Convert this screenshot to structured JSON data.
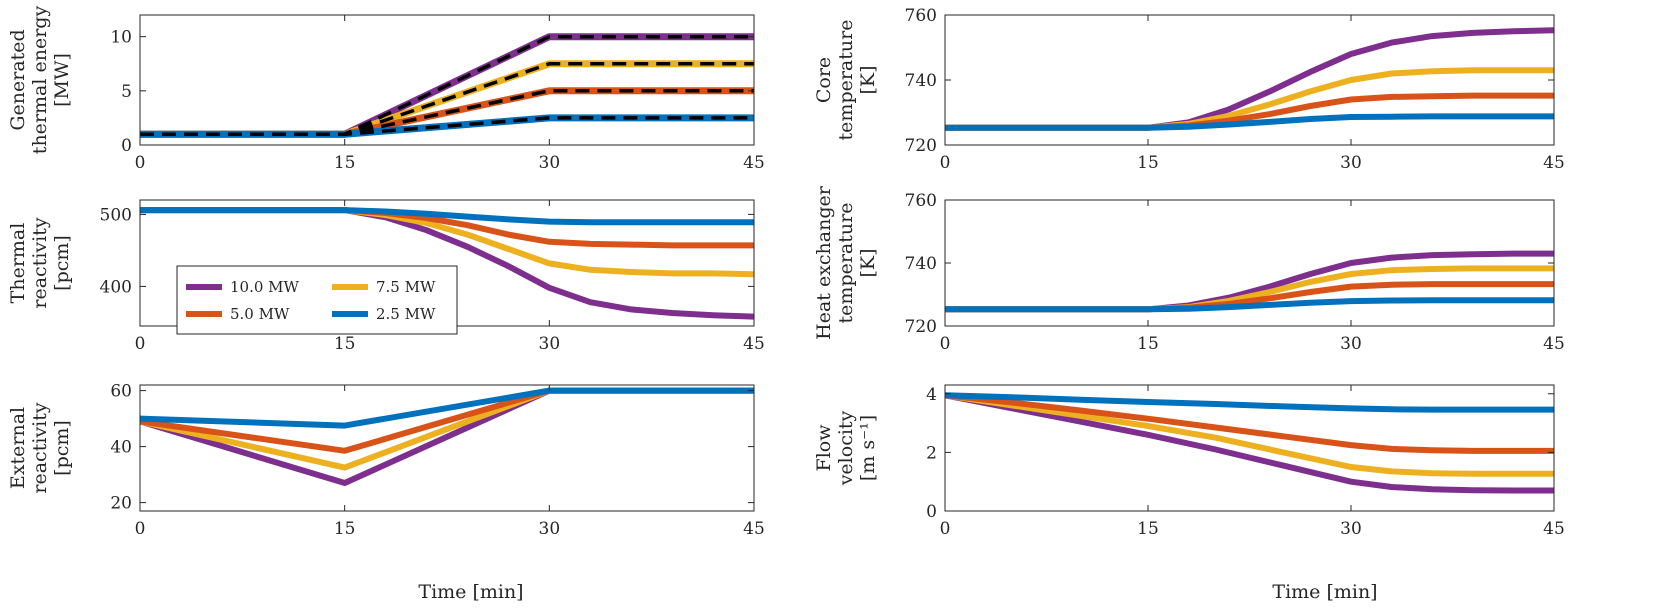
{
  "figure": {
    "xlabel_shared": "Time [min]"
  },
  "legend": {
    "entries": [
      {
        "label": "10.0 MW",
        "color": "#7E2F8E"
      },
      {
        "label": "7.5 MW",
        "color": "#EDB120"
      },
      {
        "label": "5.0 MW",
        "color": "#D95319"
      },
      {
        "label": "2.5 MW",
        "color": "#0072BD"
      }
    ]
  },
  "chart_data": [
    {
      "id": "gen",
      "type": "line",
      "ylabel": [
        "Generated",
        "thermal energy",
        "[MW]"
      ],
      "xlim": [
        0,
        45
      ],
      "ylim": [
        0,
        12
      ],
      "xticks": [
        0,
        15,
        30,
        45
      ],
      "yticks": [
        0,
        5,
        10
      ],
      "series": [
        {
          "name": "10.0 MW",
          "color": "#7E2F8E",
          "x": [
            0,
            15,
            30,
            45
          ],
          "y": [
            1,
            1,
            10,
            10
          ]
        },
        {
          "name": "7.5 MW",
          "color": "#EDB120",
          "x": [
            0,
            15,
            30,
            45
          ],
          "y": [
            1,
            1,
            7.5,
            7.5
          ]
        },
        {
          "name": "5.0 MW",
          "color": "#D95319",
          "x": [
            0,
            15,
            30,
            45
          ],
          "y": [
            1,
            1,
            5,
            5
          ]
        },
        {
          "name": "2.5 MW",
          "color": "#0072BD",
          "x": [
            0,
            15,
            30,
            45
          ],
          "y": [
            1,
            1,
            2.5,
            2.5
          ]
        }
      ],
      "reference": [
        {
          "x": [
            0,
            15,
            30,
            45
          ],
          "y": [
            1,
            1,
            10,
            10
          ]
        },
        {
          "x": [
            0,
            15,
            30,
            45
          ],
          "y": [
            1,
            1,
            7.5,
            7.5
          ]
        },
        {
          "x": [
            0,
            15,
            30,
            45
          ],
          "y": [
            1,
            1,
            5,
            5
          ]
        },
        {
          "x": [
            0,
            15,
            30,
            45
          ],
          "y": [
            1,
            1,
            2.5,
            2.5
          ]
        }
      ]
    },
    {
      "id": "thermal",
      "type": "line",
      "ylabel": [
        "Thermal",
        "reactivity",
        "[pcm]"
      ],
      "xlim": [
        0,
        45
      ],
      "ylim": [
        345,
        520
      ],
      "xticks": [
        0,
        15,
        30,
        45
      ],
      "yticks": [
        400,
        500
      ],
      "series": [
        {
          "name": "10.0 MW",
          "color": "#7E2F8E",
          "x": [
            0,
            15,
            18,
            21,
            24,
            27,
            30,
            33,
            36,
            39,
            42,
            45
          ],
          "y": [
            506,
            506,
            496,
            478,
            455,
            428,
            398,
            378,
            368,
            363,
            360,
            358
          ]
        },
        {
          "name": "7.5 MW",
          "color": "#EDB120",
          "x": [
            0,
            15,
            18,
            21,
            24,
            27,
            30,
            33,
            36,
            39,
            42,
            45
          ],
          "y": [
            506,
            506,
            499,
            488,
            472,
            452,
            432,
            423,
            420,
            418,
            418,
            417
          ]
        },
        {
          "name": "5.0 MW",
          "color": "#D95319",
          "x": [
            0,
            15,
            18,
            21,
            24,
            27,
            30,
            33,
            36,
            39,
            42,
            45
          ],
          "y": [
            506,
            506,
            502,
            495,
            485,
            472,
            462,
            459,
            458,
            457,
            457,
            457
          ]
        },
        {
          "name": "2.5 MW",
          "color": "#0072BD",
          "x": [
            0,
            15,
            18,
            21,
            24,
            27,
            30,
            33,
            36,
            39,
            42,
            45
          ],
          "y": [
            506,
            506,
            504,
            501,
            497,
            493,
            490,
            489,
            489,
            489,
            489,
            489
          ]
        }
      ]
    },
    {
      "id": "external",
      "type": "line",
      "ylabel": [
        "External",
        "reactivity",
        "[pcm]"
      ],
      "xlim": [
        0,
        45
      ],
      "ylim": [
        17,
        62
      ],
      "xticks": [
        0,
        15,
        30,
        45
      ],
      "yticks": [
        20,
        40,
        60
      ],
      "series": [
        {
          "name": "10.0 MW",
          "color": "#7E2F8E",
          "x": [
            0,
            15,
            30,
            45
          ],
          "y": [
            49,
            27,
            60,
            60
          ]
        },
        {
          "name": "7.5 MW",
          "color": "#EDB120",
          "x": [
            0,
            15,
            30,
            45
          ],
          "y": [
            49,
            32.5,
            60,
            60
          ]
        },
        {
          "name": "5.0 MW",
          "color": "#D95319",
          "x": [
            0,
            15,
            30,
            45
          ],
          "y": [
            49,
            38.5,
            60,
            60
          ]
        },
        {
          "name": "2.5 MW",
          "color": "#0072BD",
          "x": [
            0,
            15,
            30,
            45
          ],
          "y": [
            50,
            47.5,
            60,
            60
          ]
        }
      ]
    },
    {
      "id": "core",
      "type": "line",
      "ylabel": [
        "Core",
        "temperature",
        "[K]"
      ],
      "xlim": [
        0,
        45
      ],
      "ylim": [
        720,
        760
      ],
      "xticks": [
        0,
        15,
        30,
        45
      ],
      "yticks": [
        720,
        740,
        760
      ],
      "series": [
        {
          "name": "10.0 MW",
          "color": "#7E2F8E",
          "x": [
            0,
            15,
            18,
            21,
            24,
            27,
            30,
            33,
            36,
            39,
            42,
            45
          ],
          "y": [
            725.3,
            725.3,
            727,
            731,
            736.5,
            742.5,
            748,
            751.5,
            753.5,
            754.5,
            755,
            755.3
          ]
        },
        {
          "name": "7.5 MW",
          "color": "#EDB120",
          "x": [
            0,
            15,
            18,
            21,
            24,
            27,
            30,
            33,
            36,
            39,
            42,
            45
          ],
          "y": [
            725.3,
            725.3,
            726.5,
            729,
            732.5,
            736.5,
            740,
            742,
            742.7,
            743,
            743,
            743
          ]
        },
        {
          "name": "5.0 MW",
          "color": "#D95319",
          "x": [
            0,
            15,
            18,
            21,
            24,
            27,
            30,
            33,
            36,
            39,
            42,
            45
          ],
          "y": [
            725.3,
            725.3,
            726,
            727.5,
            729.5,
            732,
            734,
            734.8,
            735,
            735.2,
            735.2,
            735.2
          ]
        },
        {
          "name": "2.5 MW",
          "color": "#0072BD",
          "x": [
            0,
            15,
            18,
            21,
            24,
            27,
            30,
            33,
            36,
            39,
            42,
            45
          ],
          "y": [
            725.3,
            725.3,
            725.6,
            726.3,
            727.1,
            728,
            728.6,
            728.7,
            728.8,
            728.8,
            728.8,
            728.8
          ]
        }
      ]
    },
    {
      "id": "hx",
      "type": "line",
      "ylabel": [
        "Heat exchanger",
        "temperature",
        "[K]"
      ],
      "xlim": [
        0,
        45
      ],
      "ylim": [
        720,
        760
      ],
      "xticks": [
        0,
        15,
        30,
        45
      ],
      "yticks": [
        720,
        740,
        760
      ],
      "series": [
        {
          "name": "10.0 MW",
          "color": "#7E2F8E",
          "x": [
            0,
            15,
            18,
            21,
            24,
            27,
            30,
            33,
            36,
            39,
            42,
            45
          ],
          "y": [
            725.3,
            725.3,
            726.5,
            729,
            732.5,
            736.5,
            740,
            741.7,
            742.5,
            742.8,
            743,
            743
          ]
        },
        {
          "name": "7.5 MW",
          "color": "#EDB120",
          "x": [
            0,
            15,
            18,
            21,
            24,
            27,
            30,
            33,
            36,
            39,
            42,
            45
          ],
          "y": [
            725.3,
            725.3,
            726,
            728,
            730.8,
            734,
            736.5,
            737.7,
            738.1,
            738.3,
            738.3,
            738.3
          ]
        },
        {
          "name": "5.0 MW",
          "color": "#D95319",
          "x": [
            0,
            15,
            18,
            21,
            24,
            27,
            30,
            33,
            36,
            39,
            42,
            45
          ],
          "y": [
            725.3,
            725.3,
            725.8,
            727,
            728.8,
            730.8,
            732.5,
            733.1,
            733.3,
            733.3,
            733.3,
            733.3
          ]
        },
        {
          "name": "2.5 MW",
          "color": "#0072BD",
          "x": [
            0,
            15,
            18,
            21,
            24,
            27,
            30,
            33,
            36,
            39,
            42,
            45
          ],
          "y": [
            725.3,
            725.3,
            725.5,
            726,
            726.7,
            727.4,
            727.9,
            728.1,
            728.2,
            728.2,
            728.2,
            728.2
          ]
        }
      ]
    },
    {
      "id": "flow",
      "type": "line",
      "ylabel": [
        "Flow",
        "velocity",
        "[m s⁻¹]"
      ],
      "xlim": [
        0,
        45
      ],
      "ylim": [
        0,
        4.3
      ],
      "xticks": [
        0,
        15,
        30,
        45
      ],
      "yticks": [
        0,
        2,
        4
      ],
      "series": [
        {
          "name": "10.0 MW",
          "color": "#7E2F8E",
          "x": [
            0,
            5,
            10,
            15,
            20,
            25,
            30,
            33,
            36,
            39,
            42,
            45
          ],
          "y": [
            3.95,
            3.5,
            3.05,
            2.6,
            2.1,
            1.55,
            1.0,
            0.82,
            0.74,
            0.71,
            0.7,
            0.7
          ]
        },
        {
          "name": "7.5 MW",
          "color": "#EDB120",
          "x": [
            0,
            5,
            10,
            15,
            20,
            25,
            30,
            33,
            36,
            39,
            42,
            45
          ],
          "y": [
            3.95,
            3.6,
            3.25,
            2.9,
            2.5,
            2.0,
            1.5,
            1.35,
            1.29,
            1.27,
            1.27,
            1.27
          ]
        },
        {
          "name": "5.0 MW",
          "color": "#D95319",
          "x": [
            0,
            5,
            10,
            15,
            20,
            25,
            30,
            33,
            36,
            39,
            42,
            45
          ],
          "y": [
            3.95,
            3.7,
            3.43,
            3.15,
            2.85,
            2.55,
            2.25,
            2.12,
            2.07,
            2.05,
            2.05,
            2.05
          ]
        },
        {
          "name": "2.5 MW",
          "color": "#0072BD",
          "x": [
            0,
            5,
            10,
            15,
            20,
            25,
            30,
            33,
            36,
            39,
            42,
            45
          ],
          "y": [
            3.95,
            3.88,
            3.8,
            3.72,
            3.65,
            3.57,
            3.5,
            3.47,
            3.46,
            3.46,
            3.46,
            3.46
          ]
        }
      ]
    }
  ]
}
